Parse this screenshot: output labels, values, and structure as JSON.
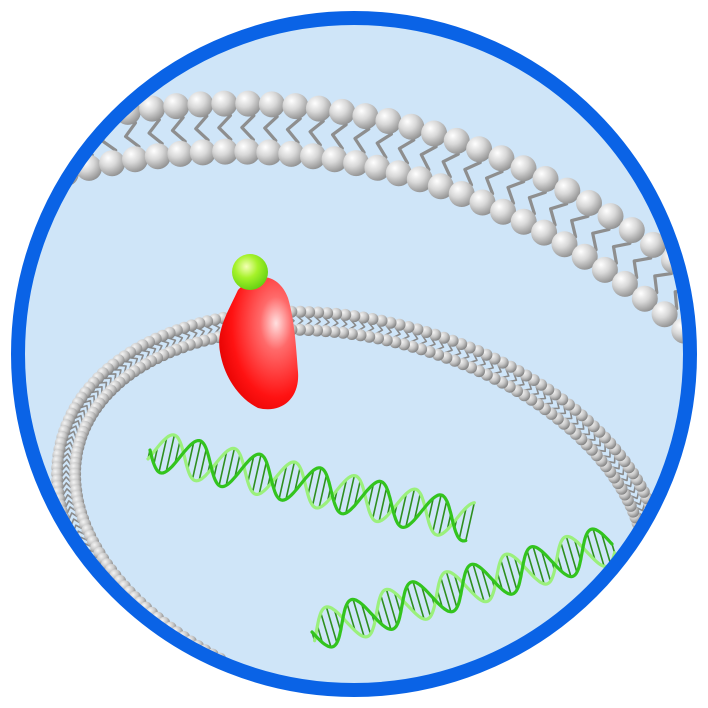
{
  "illustration": {
    "frame_color": "#0a63e6",
    "background_color": "#cfe5f8",
    "outer_membrane": {
      "lipid_color": "#bcbcbc",
      "tail_color": "#8e8e8e"
    },
    "inner_membrane": {
      "lipid_color": "#b9b9b9",
      "tail_color": "#8a8a8a"
    },
    "receptor": {
      "color": "#ff1010",
      "highlight": "#ffd0d0"
    },
    "ligand": {
      "color": "#7fe81a",
      "highlight": "#f2ffb0"
    },
    "dna_strands": [
      {
        "strand_a": "#33c41e",
        "strand_b": "#9bf07c",
        "rungs": "#2e8f1f"
      },
      {
        "strand_a": "#33c41e",
        "strand_b": "#9bf07c",
        "rungs": "#2e8f1f"
      }
    ]
  }
}
